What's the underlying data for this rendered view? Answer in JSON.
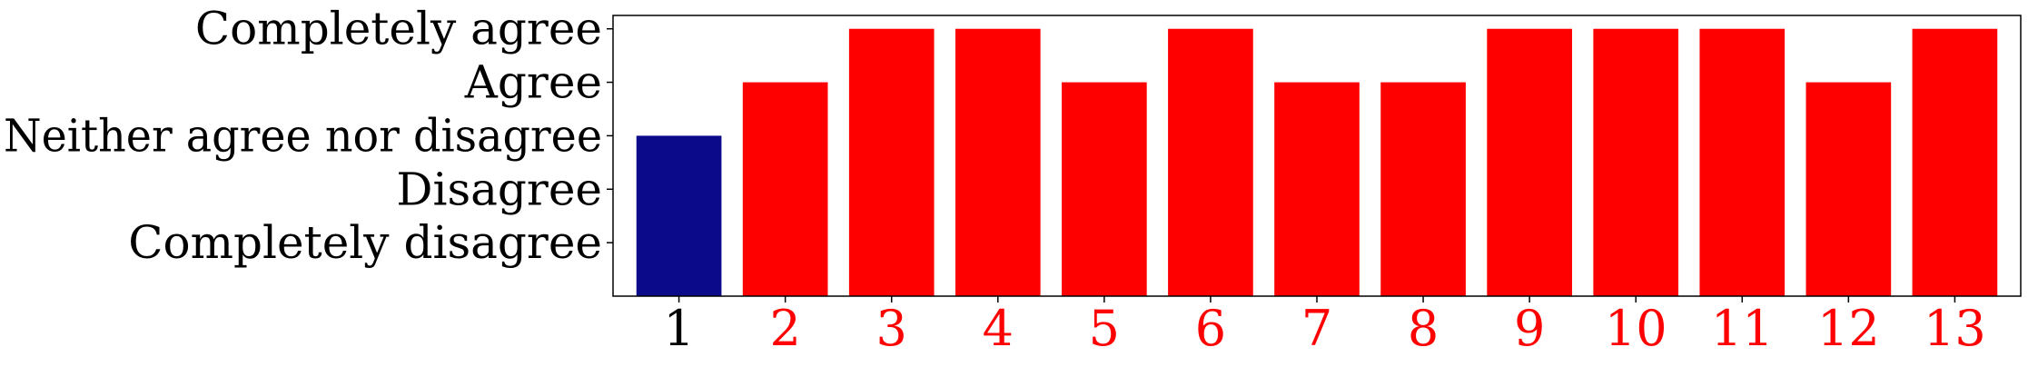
{
  "chart_data": {
    "type": "bar",
    "categories": [
      "1",
      "2",
      "3",
      "4",
      "5",
      "6",
      "7",
      "8",
      "9",
      "10",
      "11",
      "12",
      "13"
    ],
    "values": [
      3,
      4,
      5,
      5,
      4,
      5,
      4,
      4,
      5,
      5,
      5,
      4,
      5
    ],
    "y_ticks": [
      {
        "value": 1,
        "label": "Completely disagree"
      },
      {
        "value": 2,
        "label": "Disagree"
      },
      {
        "value": 3,
        "label": "Neither agree nor disagree"
      },
      {
        "value": 4,
        "label": "Agree"
      },
      {
        "value": 5,
        "label": "Completely agree"
      }
    ],
    "ylim": [
      0,
      5.25
    ],
    "title": "",
    "xlabel": "",
    "ylabel": "",
    "grid": false,
    "colors": {
      "highlight_bar": "#0a0a8a",
      "bar": "#ff0000",
      "highlight_tick": "#000000",
      "tick": "#ff0000",
      "axis": "#000000"
    },
    "highlight_index": 0
  }
}
